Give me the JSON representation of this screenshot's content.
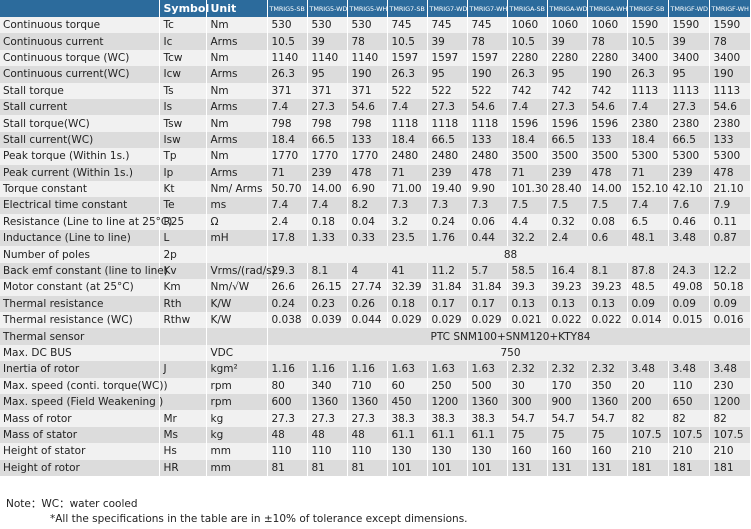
{
  "header": {
    "blank": "",
    "symbol": "Symbol",
    "unit": "Unit",
    "models": [
      "TMRIG5-SB",
      "TMRIG5-WD",
      "TMRIG5-WH",
      "TMRIG7-SB",
      "TMRIG7-WD",
      "TMRIG7-WH",
      "TMRIGA-SB",
      "TMRIGA-WD",
      "TMRIGA-WH",
      "TMRIGF-SB",
      "TMRIGF-WD",
      "TMRIGF-WH"
    ]
  },
  "rows": [
    {
      "param": "Continuous torque",
      "symbol": "Tc",
      "unit": "Nm",
      "values": [
        "530",
        "530",
        "530",
        "745",
        "745",
        "745",
        "1060",
        "1060",
        "1060",
        "1590",
        "1590",
        "1590"
      ]
    },
    {
      "param": "Continuous current",
      "symbol": "Ic",
      "unit": "Arms",
      "values": [
        "10.5",
        "39",
        "78",
        "10.5",
        "39",
        "78",
        "10.5",
        "39",
        "78",
        "10.5",
        "39",
        "78"
      ]
    },
    {
      "param": "Continuous torque (WC)",
      "symbol": "Tcw",
      "unit": "Nm",
      "values": [
        "1140",
        "1140",
        "1140",
        "1597",
        "1597",
        "1597",
        "2280",
        "2280",
        "2280",
        "3400",
        "3400",
        "3400"
      ]
    },
    {
      "param": "Continuous current(WC)",
      "symbol": "Icw",
      "unit": "Arms",
      "values": [
        "26.3",
        "95",
        "190",
        "26.3",
        "95",
        "190",
        "26.3",
        "95",
        "190",
        "26.3",
        "95",
        "190"
      ]
    },
    {
      "param": "Stall torque",
      "symbol": "Ts",
      "unit": "Nm",
      "values": [
        "371",
        "371",
        "371",
        "522",
        "522",
        "522",
        "742",
        "742",
        "742",
        "1113",
        "1113",
        "1113"
      ]
    },
    {
      "param": "Stall current",
      "symbol": "Is",
      "unit": "Arms",
      "values": [
        "7.4",
        "27.3",
        "54.6",
        "7.4",
        "27.3",
        "54.6",
        "7.4",
        "27.3",
        "54.6",
        "7.4",
        "27.3",
        "54.6"
      ]
    },
    {
      "param": "Stall torque(WC)",
      "symbol": "Tsw",
      "unit": "Nm",
      "values": [
        "798",
        "798",
        "798",
        "1118",
        "1118",
        "1118",
        "1596",
        "1596",
        "1596",
        "2380",
        "2380",
        "2380"
      ]
    },
    {
      "param": "Stall current(WC)",
      "symbol": "Isw",
      "unit": "Arms",
      "values": [
        "18.4",
        "66.5",
        "133",
        "18.4",
        "66.5",
        "133",
        "18.4",
        "66.5",
        "133",
        "18.4",
        "66.5",
        "133"
      ]
    },
    {
      "param": "Peak torque (Within 1s.)",
      "symbol": "Tp",
      "unit": "Nm",
      "values": [
        "1770",
        "1770",
        "1770",
        "2480",
        "2480",
        "2480",
        "3500",
        "3500",
        "3500",
        "5300",
        "5300",
        "5300"
      ]
    },
    {
      "param": "Peak current (Within 1s.)",
      "symbol": "Ip",
      "unit": "Arms",
      "values": [
        "71",
        "239",
        "478",
        "71",
        "239",
        "478",
        "71",
        "239",
        "478",
        "71",
        "239",
        "478"
      ]
    },
    {
      "param": "Torque constant",
      "symbol": "Kt",
      "unit": "Nm/ Arms",
      "values": [
        "50.70",
        "14.00",
        "6.90",
        "71.00",
        "19.40",
        "9.90",
        "101.30",
        "28.40",
        "14.00",
        "152.10",
        "42.10",
        "21.10"
      ]
    },
    {
      "param": "Electrical time constant",
      "symbol": "Te",
      "unit": "ms",
      "values": [
        "7.4",
        "7.4",
        "8.2",
        "7.3",
        "7.3",
        "7.3",
        "7.5",
        "7.5",
        "7.5",
        "7.4",
        "7.6",
        "7.9"
      ]
    },
    {
      "param": "Resistance (Line to line at 25°C)",
      "symbol": "R25",
      "unit": "Ω",
      "values": [
        "2.4",
        "0.18",
        "0.04",
        "3.2",
        "0.24",
        "0.06",
        "4.4",
        "0.32",
        "0.08",
        "6.5",
        "0.46",
        "0.11"
      ]
    },
    {
      "param": "Inductance (Line to line)",
      "symbol": "L",
      "unit": "mH",
      "values": [
        "17.8",
        "1.33",
        "0.33",
        "23.5",
        "1.76",
        "0.44",
        "32.2",
        "2.4",
        "0.6",
        "48.1",
        "3.48",
        "0.87"
      ]
    },
    {
      "param": "Number of poles",
      "symbol": "2p",
      "unit": "",
      "span": "88"
    },
    {
      "param": "Back emf constant (line to line)",
      "symbol": "Kv",
      "unit": "Vrms/(rad/s)",
      "values": [
        "29.3",
        "8.1",
        "4",
        "41",
        "11.2",
        "5.7",
        "58.5",
        "16.4",
        "8.1",
        "87.8",
        "24.3",
        "12.2"
      ]
    },
    {
      "param": "Motor constant (at 25°C)",
      "symbol": "Km",
      "unit": "Nm/√W",
      "values": [
        "26.6",
        "26.15",
        "27.74",
        "32.39",
        "31.84",
        "31.84",
        "39.3",
        "39.23",
        "39.23",
        "48.5",
        "49.08",
        "50.18"
      ]
    },
    {
      "param": "Thermal resistance",
      "symbol": "Rth",
      "unit": "K/W",
      "values": [
        "0.24",
        "0.23",
        "0.26",
        "0.18",
        "0.17",
        "0.17",
        "0.13",
        "0.13",
        "0.13",
        "0.09",
        "0.09",
        "0.09"
      ]
    },
    {
      "param": "Thermal resistance (WC)",
      "symbol": "Rthw",
      "unit": "K/W",
      "values": [
        "0.038",
        "0.039",
        "0.044",
        "0.029",
        "0.029",
        "0.029",
        "0.021",
        "0.022",
        "0.022",
        "0.014",
        "0.015",
        "0.016"
      ]
    },
    {
      "param": "Thermal sensor",
      "symbol": "",
      "unit": "",
      "span": "PTC SNM100+SNM120+KTY84"
    },
    {
      "param": "Max. DC BUS",
      "symbol": "",
      "unit": "VDC",
      "span": "750"
    },
    {
      "param": "Inertia of rotor",
      "symbol": "J",
      "unit": "kgm²",
      "values": [
        "1.16",
        "1.16",
        "1.16",
        "1.63",
        "1.63",
        "1.63",
        "2.32",
        "2.32",
        "2.32",
        "3.48",
        "3.48",
        "3.48"
      ]
    },
    {
      "param": "Max. speed (conti. torque(WC))",
      "symbol": "",
      "unit": "rpm",
      "values": [
        "80",
        "340",
        "710",
        "60",
        "250",
        "500",
        "30",
        "170",
        "350",
        "20",
        "110",
        "230"
      ]
    },
    {
      "param": "Max. speed (Field Weakening )",
      "symbol": "",
      "unit": "rpm",
      "values": [
        "600",
        "1360",
        "1360",
        "450",
        "1200",
        "1360",
        "300",
        "900",
        "1360",
        "200",
        "650",
        "1200"
      ]
    },
    {
      "param": "Mass of rotor",
      "symbol": "Mr",
      "unit": "kg",
      "values": [
        "27.3",
        "27.3",
        "27.3",
        "38.3",
        "38.3",
        "38.3",
        "54.7",
        "54.7",
        "54.7",
        "82",
        "82",
        "82"
      ]
    },
    {
      "param": "Mass of stator",
      "symbol": "Ms",
      "unit": "kg",
      "values": [
        "48",
        "48",
        "48",
        "61.1",
        "61.1",
        "61.1",
        "75",
        "75",
        "75",
        "107.5",
        "107.5",
        "107.5"
      ]
    },
    {
      "param": "Height of stator",
      "symbol": "Hs",
      "unit": "mm",
      "values": [
        "110",
        "110",
        "110",
        "130",
        "130",
        "130",
        "160",
        "160",
        "160",
        "210",
        "210",
        "210"
      ]
    },
    {
      "param": "Height of rotor",
      "symbol": "HR",
      "unit": "mm",
      "values": [
        "81",
        "81",
        "81",
        "101",
        "101",
        "101",
        "131",
        "131",
        "131",
        "181",
        "181",
        "181"
      ]
    }
  ],
  "notes": {
    "line1": "Note：WC：water cooled",
    "line2": "*All the specifications in the table are in ±10% of tolerance except dimensions."
  },
  "colors": {
    "header_bg": "#2c6b9c",
    "row_light": "#f1f1f1",
    "row_dark": "#dcdcdc"
  }
}
